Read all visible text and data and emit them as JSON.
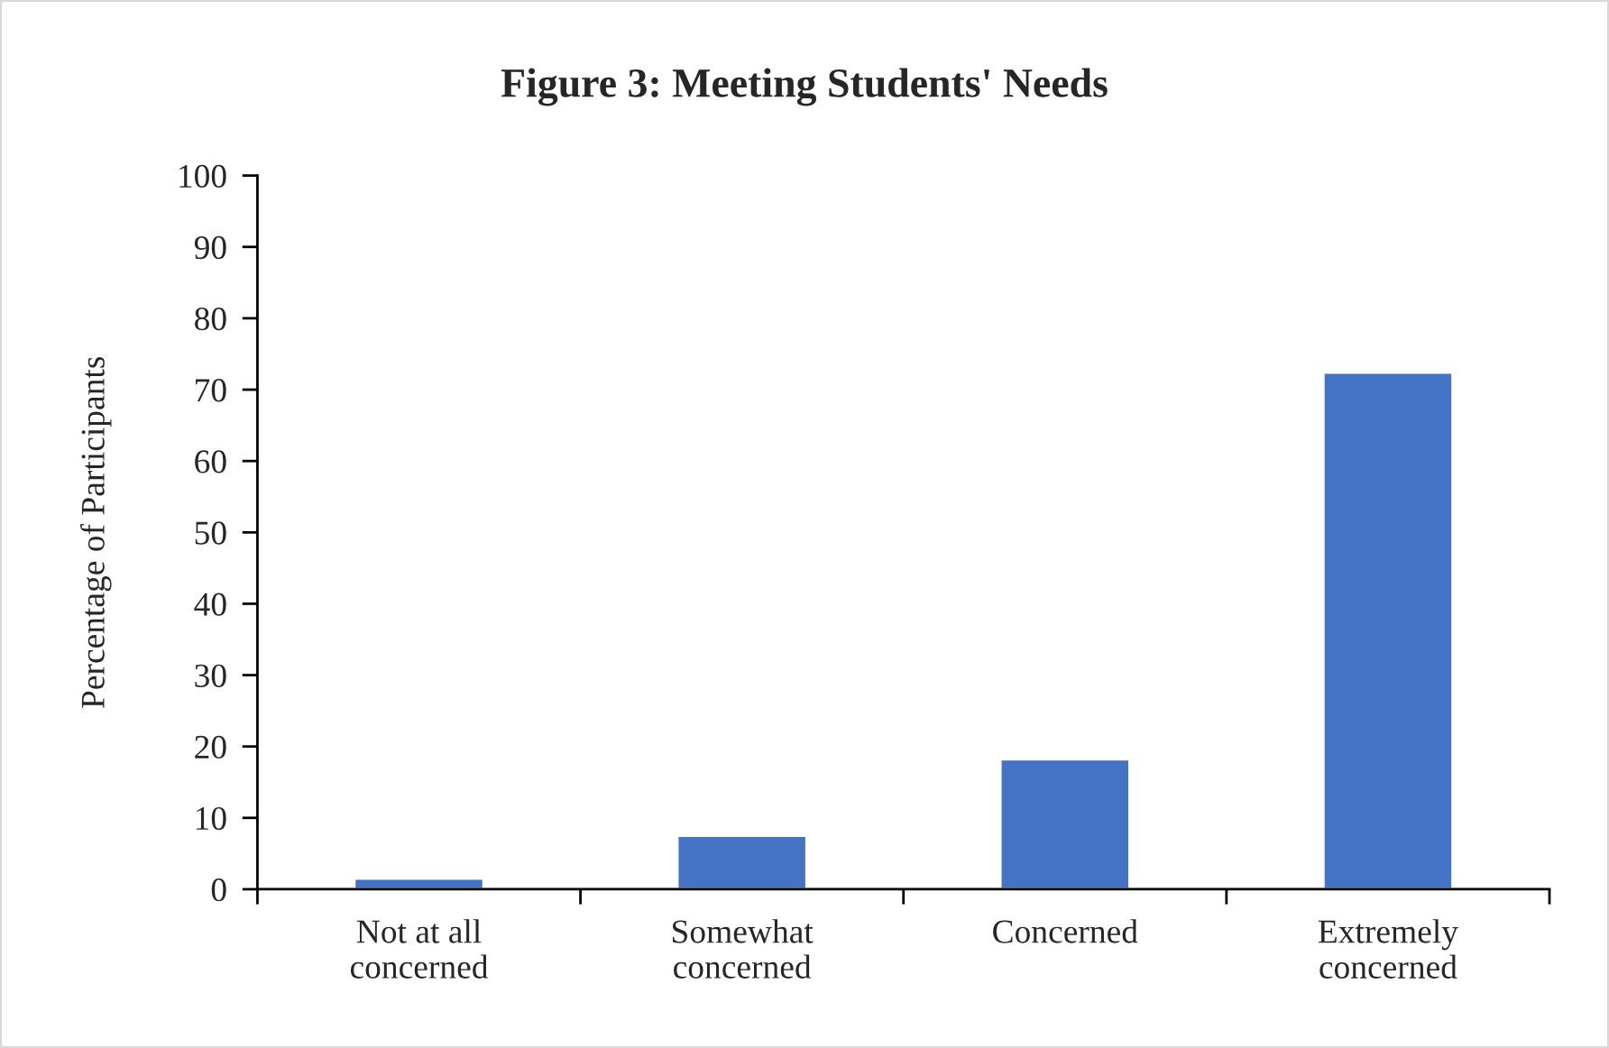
{
  "chart_data": {
    "type": "bar",
    "title": "Figure 3: Meeting Students' Needs",
    "ylabel": "Percentage of Participants",
    "categories": [
      "Not at all\nconcerned",
      "Somewhat\nconcerned",
      "Concerned",
      "Extremely\nconcerned"
    ],
    "values": [
      1.5,
      7.5,
      18.2,
      72.4
    ],
    "color": "#4472c4",
    "ylim": [
      0,
      100
    ],
    "yticks": [
      0,
      10,
      20,
      30,
      40,
      50,
      60,
      70,
      80,
      90,
      100
    ],
    "grid": false,
    "legend": false
  }
}
